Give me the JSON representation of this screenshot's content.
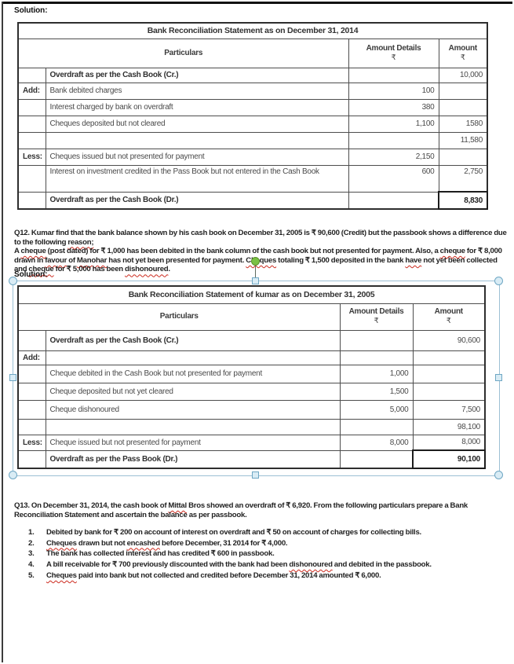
{
  "labels": {
    "solution_1": "Solution:",
    "solution_2": "Solution:"
  },
  "colors": {
    "selection_line": "#9cc0d4",
    "handle_fill": "#d9ecf5",
    "handle_border": "#6fa7c4",
    "rotation_handle_green": "#7ac143",
    "spellcheck_squiggle": "#cc2a1e",
    "table_border": "#2e2e2e"
  },
  "tables": [
    {
      "title": "Bank Reconciliation Statement as on December 31, 2014",
      "headers": {
        "particulars": "Particulars",
        "amount_details": "Amount Details",
        "amount": "Amount",
        "currency": "₹"
      },
      "rows": [
        {
          "label": "",
          "particulars": "Overdraft as per the Cash Book (Cr.)",
          "details": "",
          "amount": "10,000",
          "bold": true
        },
        {
          "label": "Add:",
          "particulars": "Bank debited charges",
          "details": "100",
          "amount": ""
        },
        {
          "label": "",
          "particulars": "Interest charged by bank on overdraft",
          "details": "380",
          "amount": ""
        },
        {
          "label": "",
          "particulars": "Cheques deposited but not cleared",
          "details": "1,100",
          "amount": "1580"
        },
        {
          "label": "",
          "particulars": "",
          "details": "",
          "amount": "11,580"
        },
        {
          "label": "Less:",
          "particulars": "Cheques issued but not presented for payment",
          "details": "2,150",
          "amount": ""
        },
        {
          "label": "",
          "particulars": "Interest on investment credited in the Pass Book but not entered in the Cash Book",
          "details": "600",
          "amount": "2,750",
          "top": true
        },
        {
          "label": "",
          "particulars": "Overdraft as per the Cash Book (Dr.)",
          "details": "",
          "amount": "8,830",
          "bold": true,
          "total": true
        }
      ]
    },
    {
      "title": "Bank Reconciliation Statement of kumar as on December 31, 2005",
      "headers": {
        "particulars": "Particulars",
        "amount_details": "Amount Details",
        "amount": "Amount",
        "currency": "₹"
      },
      "rows": [
        {
          "label": "",
          "particulars": "Overdraft as per the Cash Book (Cr.)",
          "details": "",
          "amount": "90,600",
          "bold": true
        },
        {
          "label": "Add:",
          "particulars": "",
          "details": "",
          "amount": ""
        },
        {
          "label": "",
          "particulars": "Cheque debited in the Cash Book but not presented for payment",
          "details": "1,000",
          "amount": ""
        },
        {
          "label": "",
          "particulars": "Cheque deposited but not yet cleared",
          "details": "1,500",
          "amount": ""
        },
        {
          "label": "",
          "particulars": "Cheque dishonoured",
          "details": "5,000",
          "amount": "7,500"
        },
        {
          "label": "",
          "particulars": "",
          "details": "",
          "amount": "98,100"
        },
        {
          "label": "Less:",
          "particulars": "Cheque issued but not presented for payment",
          "details": "8,000",
          "amount": "8,000"
        },
        {
          "label": "",
          "particulars": "Overdraft as per the Pass Book (Dr.)",
          "details": "",
          "amount": "90,100",
          "bold": true,
          "total": true
        }
      ]
    }
  ],
  "q12": {
    "para1": [
      {
        "t": "Q12. Kumar find that the bank balance shown by his cash book on December 31, 2005 is ₹ 90,600 (Credit) but the passbook shows a difference due to the following "
      },
      {
        "t": "reason;",
        "sp": true
      }
    ],
    "para2": [
      {
        "t": "A "
      },
      {
        "t": "cheque",
        "sp": true
      },
      {
        "t": " (post dated) for ₹ 1,000 has been debited in the bank column of the cash book but not presented for payment. Also, a "
      },
      {
        "t": "cheque",
        "sp": true
      },
      {
        "t": " for ₹ 8,000 drawn in "
      },
      {
        "t": "favour",
        "sp": true
      },
      {
        "t": " of "
      },
      {
        "t": "Manohar",
        "sp": true
      },
      {
        "t": " has not yet been presented for payment. "
      },
      {
        "t": "Cheques",
        "sp": true
      },
      {
        "t": " totaling ₹ 1,500 deposited in the bank "
      },
      {
        "t": "have",
        "sp": true
      },
      {
        "t": " not yet been collected and "
      },
      {
        "t": "cheque",
        "sp": true
      },
      {
        "t": " for ₹ 5,000 has been "
      },
      {
        "t": "dishonoured",
        "sp": true
      },
      {
        "t": "."
      }
    ]
  },
  "q13": {
    "para": [
      {
        "t": "Q13. On December 31, 2014, the cash book of "
      },
      {
        "t": "Mittal",
        "sp": true
      },
      {
        "t": " Bros showed an overdraft of ₹ 6,920. From the following particulars prepare a Bank Reconciliation Statement and ascertain the balance as per passbook."
      }
    ],
    "items": [
      {
        "num": "1.",
        "segments": [
          {
            "t": "Debited by bank for ₹ 200 on account of interest on overdraft and ₹ 50 on account of charges for collecting bills."
          }
        ]
      },
      {
        "num": "2.",
        "segments": [
          {
            "t": "Cheques",
            "sp": true
          },
          {
            "t": " drawn but not "
          },
          {
            "t": "encashed",
            "sp": true
          },
          {
            "t": " before December, 31 2014 for ₹ 4,000."
          }
        ]
      },
      {
        "num": "3.",
        "segments": [
          {
            "t": "The bank has collected interest and has credited ₹ 600 in passbook."
          }
        ]
      },
      {
        "num": "4.",
        "segments": [
          {
            "t": "A bill receivable for ₹ 700 previously discounted with the bank had been "
          },
          {
            "t": "dishonoured",
            "sp": true
          },
          {
            "t": " and debited in the passbook."
          }
        ]
      },
      {
        "num": "5.",
        "segments": [
          {
            "t": "Cheques",
            "sp": true
          },
          {
            "t": " paid into bank but not collected and credited before December 31, 2014 amounted ₹ 6,000."
          }
        ]
      }
    ]
  }
}
